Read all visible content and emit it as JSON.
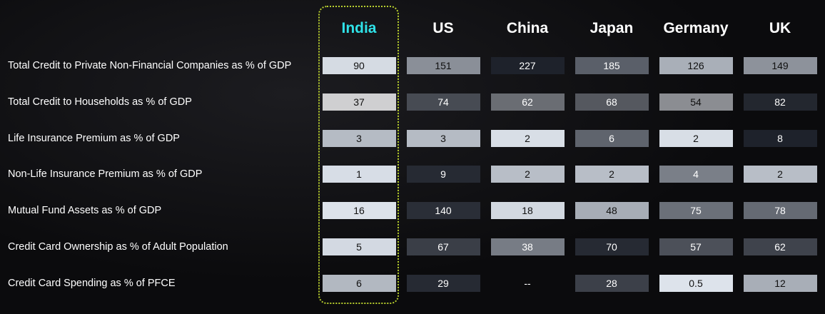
{
  "table": {
    "columns": [
      "India",
      "US",
      "China",
      "Japan",
      "Germany",
      "UK"
    ],
    "rows": [
      {
        "label": "Total Credit to Private Non-Financial Companies as % of GDP",
        "values": [
          90,
          151,
          227,
          185,
          126,
          149
        ],
        "colors": [
          "#d5dbe3",
          "#8a8f98",
          "#1e222b",
          "#5a5f69",
          "#a9afb8",
          "#8d929b"
        ]
      },
      {
        "label": "Total Credit to Households as % of GDP",
        "values": [
          37,
          74,
          62,
          68,
          54,
          82
        ],
        "colors": [
          "#cfcfd1",
          "#474b53",
          "#6a6d73",
          "#55585f",
          "#8b8d92",
          "#23272f"
        ]
      },
      {
        "label": "Life Insurance Premium as % of GDP",
        "values": [
          3,
          3,
          2,
          6,
          2,
          8
        ],
        "colors": [
          "#b5bbc4",
          "#b5bbc4",
          "#d8dee6",
          "#5f646d",
          "#d8dee6",
          "#1e222b"
        ]
      },
      {
        "label": "Non-Life Insurance Premium as % of GDP",
        "values": [
          1,
          9,
          2,
          2,
          4,
          2
        ],
        "colors": [
          "#d7dde6",
          "#262a33",
          "#b8bec7",
          "#b8bec7",
          "#7a7f88",
          "#b8bec7"
        ]
      },
      {
        "label": "Mutual Fund Assets as % of GDP",
        "values": [
          16,
          140,
          18,
          48,
          75,
          78
        ],
        "colors": [
          "#dce2ea",
          "#2a2e37",
          "#d2d8e0",
          "#a7adb6",
          "#6b7079",
          "#656a73"
        ]
      },
      {
        "label": "Credit Card Ownership as % of Adult Population",
        "values": [
          5,
          67,
          38,
          70,
          57,
          62
        ],
        "colors": [
          "#d3d9e2",
          "#3a3e47",
          "#777c85",
          "#262a33",
          "#4c5059",
          "#3f434c"
        ]
      },
      {
        "label": "Credit Card Spending as % of PFCE",
        "values": [
          6,
          29,
          "--",
          28,
          0.5,
          12
        ],
        "colors": [
          "#b2b8c1",
          "#262a33",
          null,
          "#3c4049",
          "#dde3eb",
          "#a8aeb7"
        ]
      }
    ]
  }
}
